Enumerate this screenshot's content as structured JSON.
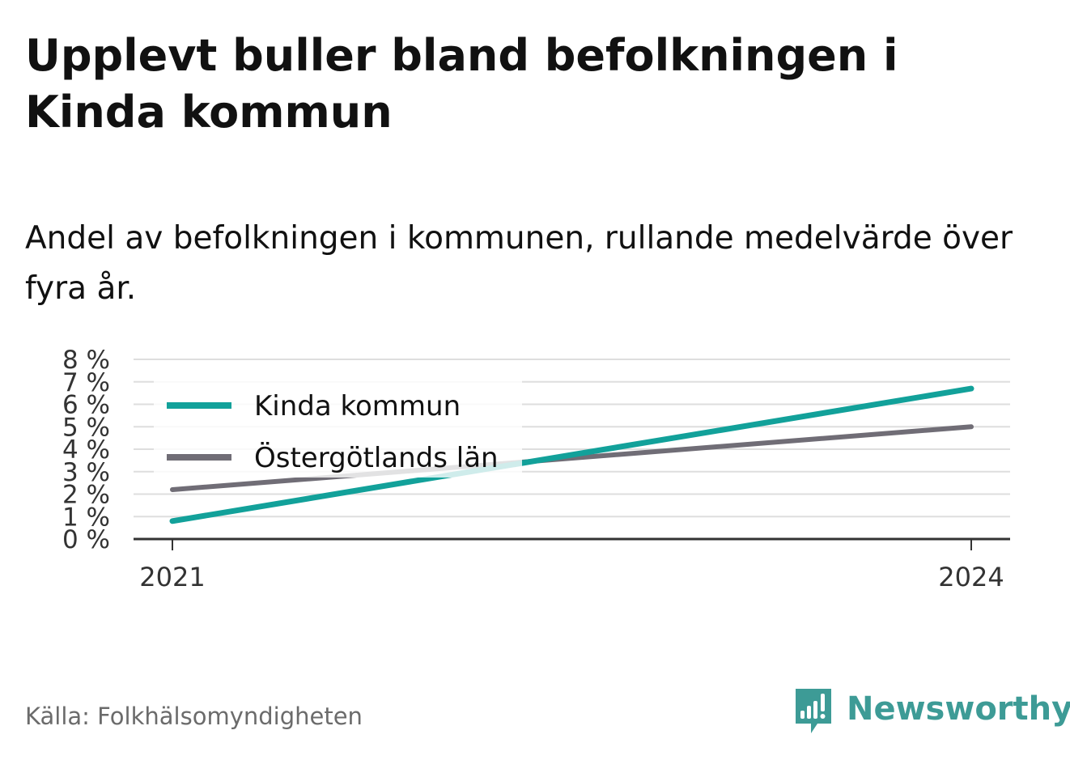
{
  "title": "Upplevt buller bland befolkningen i Kinda kommun",
  "subtitle": "Andel av befolkningen i kommunen, rullande medelvärde över fyra år.",
  "source": "Källa: Folkhälsomyndigheten",
  "brand": {
    "name": "Newsworthy",
    "color": "#3d9b96",
    "icon": "newsworthy-logo-icon"
  },
  "chart_data": {
    "type": "line",
    "x": [
      "2021",
      "2024"
    ],
    "x_ticks": [
      "2021",
      "2024"
    ],
    "y_ticks": [
      "0 %",
      "1 %",
      "2 %",
      "3 %",
      "4 %",
      "5 %",
      "6 %",
      "7 %",
      "8 %"
    ],
    "ylim": [
      0,
      8
    ],
    "grid": true,
    "legend_position": "top-left",
    "series": [
      {
        "name": "Kinda kommun",
        "values": [
          0.8,
          6.7
        ],
        "color": "#12a19a"
      },
      {
        "name": "Östergötlands län",
        "values": [
          2.2,
          5.0
        ],
        "color": "#706d76"
      }
    ]
  }
}
